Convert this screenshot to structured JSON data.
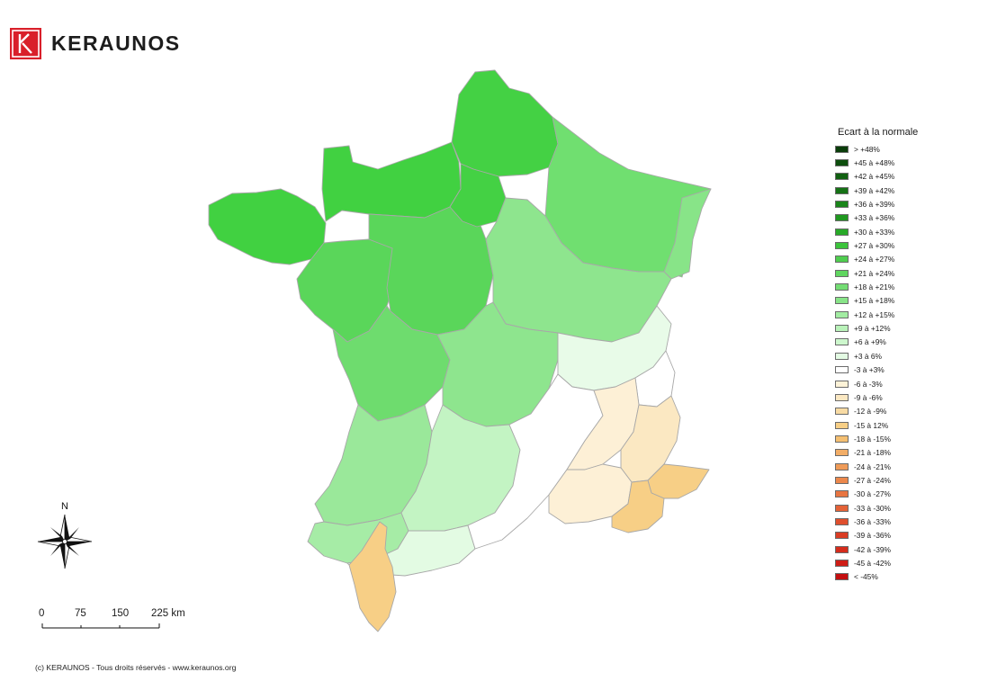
{
  "brand": {
    "name": "KERAUNOS",
    "color": "#d9202a",
    "icon": "keraunos-logo-icon"
  },
  "legend": {
    "title": "Ecart à la normale",
    "items": [
      {
        "label": "> +48%",
        "color": "#0a3d0a"
      },
      {
        "label": "+45 à +48%",
        "color": "#0d4e0d"
      },
      {
        "label": "+42 à +45%",
        "color": "#116011"
      },
      {
        "label": "+39 à +42%",
        "color": "#157215"
      },
      {
        "label": "+36 à +39%",
        "color": "#1a851a"
      },
      {
        "label": "+33 à +36%",
        "color": "#209820"
      },
      {
        "label": "+30 à +33%",
        "color": "#28aa28"
      },
      {
        "label": "+27 à +30%",
        "color": "#3cc43c"
      },
      {
        "label": "+24 à +27%",
        "color": "#4fcd4f"
      },
      {
        "label": "+21 à +24%",
        "color": "#60d660"
      },
      {
        "label": "+18 à +21%",
        "color": "#74dd74"
      },
      {
        "label": "+15 à +18%",
        "color": "#88e488"
      },
      {
        "label": "+12 à +15%",
        "color": "#a2eca2"
      },
      {
        "label": "+9 à +12%",
        "color": "#b9f2b9"
      },
      {
        "label": "+6 à +9%",
        "color": "#cdf7cd"
      },
      {
        "label": "+3 à 6%",
        "color": "#e3fbe3"
      },
      {
        "label": "-3 à +3%",
        "color": "#ffffff"
      },
      {
        "label": "-6 à -3%",
        "color": "#fdf3d8"
      },
      {
        "label": "-9 à -6%",
        "color": "#fbe8c2"
      },
      {
        "label": "-12 à -9%",
        "color": "#f8dba4"
      },
      {
        "label": "-15 à 12%",
        "color": "#f7cf86"
      },
      {
        "label": "-18 à -15%",
        "color": "#f4bf72"
      },
      {
        "label": "-21 à -18%",
        "color": "#f2ad66"
      },
      {
        "label": "-24 à -21%",
        "color": "#ef9b58"
      },
      {
        "label": "-27 à -24%",
        "color": "#ec884c"
      },
      {
        "label": "-30 à -27%",
        "color": "#e87541"
      },
      {
        "label": "-33 à -30%",
        "color": "#e46237"
      },
      {
        "label": "-36 à -33%",
        "color": "#df4f2d"
      },
      {
        "label": "-39 à -36%",
        "color": "#da3d24"
      },
      {
        "label": "-42 à -39%",
        "color": "#d52c1c"
      },
      {
        "label": "-45 à -42%",
        "color": "#cf1d16"
      },
      {
        "label": "< -45%",
        "color": "#c40f10"
      }
    ]
  },
  "compass": {
    "north_label": "N",
    "icon": "compass-rose-icon"
  },
  "scale": {
    "labels": [
      "0",
      "75",
      "150",
      "225 km"
    ]
  },
  "footer": {
    "text": "(c) KERAUNOS - Tous droits réservés - www.keraunos.org"
  },
  "map": {
    "region_colors": {
      "nw": "#41d141",
      "north": "#44d144",
      "ne": "#70df70",
      "east": "#88e488",
      "west": "#5ad65a",
      "center_west": "#6edc6e",
      "center": "#8ee58e",
      "sw": "#9ae89a",
      "south_center": "#c3f4c3",
      "south_west_coast": "#a6eca6",
      "pyrenees": "#e3fbe3",
      "alps_n": "#e8fbe8",
      "south_east": "#ffffff",
      "alps_s": "#fbe8c2",
      "provence": "#fdf0d6",
      "var": "#f7cf86",
      "alpes_maritimes": "#f7cf86",
      "corsica": "#f7cf86"
    }
  }
}
